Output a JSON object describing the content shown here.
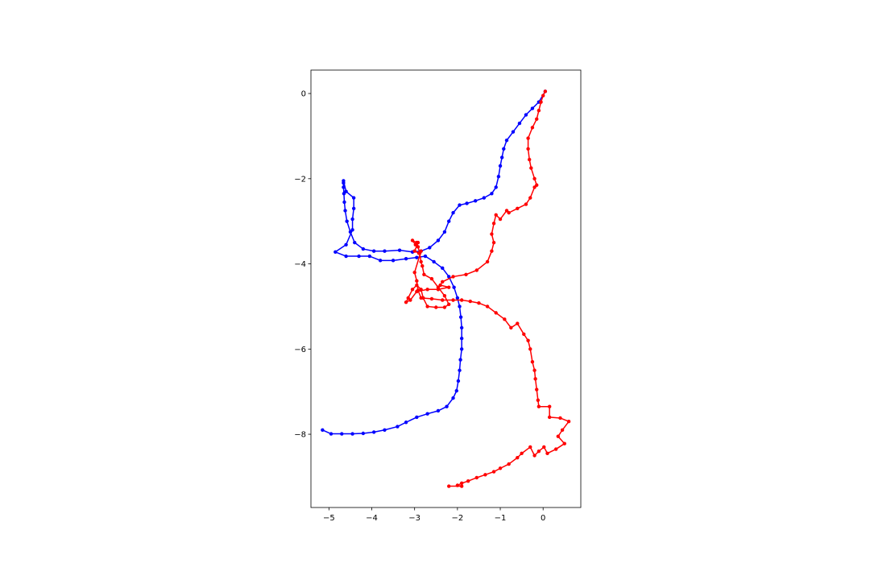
{
  "chart_data": {
    "type": "scatter",
    "title": "",
    "xlabel": "",
    "ylabel": "",
    "xlim": [
      -5.42,
      0.88
    ],
    "ylim": [
      -9.72,
      0.55
    ],
    "grid": false,
    "legend": "none",
    "x_ticks": [
      -5,
      -4,
      -3,
      -2,
      -1,
      0
    ],
    "x_tick_labels": [
      "−5",
      "−4",
      "−3",
      "−2",
      "−1",
      "0"
    ],
    "y_ticks": [
      0,
      -2,
      -4,
      -6,
      -8
    ],
    "y_tick_labels": [
      "0",
      "−2",
      "−4",
      "−6",
      "−8"
    ],
    "series": [
      {
        "color": "#0000ff",
        "marker": "circle",
        "points": [
          [
            0.05,
            0.05
          ],
          [
            -0.1,
            -0.2
          ],
          [
            -0.25,
            -0.35
          ],
          [
            -0.4,
            -0.5
          ],
          [
            -0.55,
            -0.7
          ],
          [
            -0.7,
            -0.9
          ],
          [
            -0.85,
            -1.1
          ],
          [
            -0.92,
            -1.3
          ],
          [
            -0.96,
            -1.5
          ],
          [
            -1.0,
            -1.7
          ],
          [
            -1.04,
            -1.95
          ],
          [
            -1.1,
            -2.2
          ],
          [
            -1.2,
            -2.35
          ],
          [
            -1.38,
            -2.45
          ],
          [
            -1.58,
            -2.52
          ],
          [
            -1.78,
            -2.58
          ],
          [
            -1.95,
            -2.62
          ],
          [
            -2.1,
            -2.8
          ],
          [
            -2.2,
            -3.0
          ],
          [
            -2.3,
            -3.25
          ],
          [
            -2.45,
            -3.45
          ],
          [
            -2.65,
            -3.62
          ],
          [
            -2.85,
            -3.7
          ],
          [
            -3.05,
            -3.72
          ],
          [
            -3.35,
            -3.68
          ],
          [
            -3.7,
            -3.7
          ],
          [
            -3.95,
            -3.7
          ],
          [
            -4.2,
            -3.65
          ],
          [
            -4.4,
            -3.5
          ],
          [
            -4.5,
            -3.25
          ],
          [
            -4.58,
            -3.0
          ],
          [
            -4.62,
            -2.75
          ],
          [
            -4.64,
            -2.55
          ],
          [
            -4.65,
            -2.35
          ],
          [
            -4.66,
            -2.2
          ],
          [
            -4.66,
            -2.1
          ],
          [
            -4.66,
            -2.05
          ],
          [
            -4.6,
            -2.3
          ],
          [
            -4.42,
            -2.45
          ],
          [
            -4.42,
            -2.7
          ],
          [
            -4.45,
            -2.95
          ],
          [
            -4.45,
            -3.2
          ],
          [
            -4.6,
            -3.55
          ],
          [
            -4.85,
            -3.72
          ],
          [
            -4.6,
            -3.82
          ],
          [
            -4.3,
            -3.82
          ],
          [
            -4.05,
            -3.82
          ],
          [
            -3.8,
            -3.92
          ],
          [
            -3.5,
            -3.92
          ],
          [
            -3.2,
            -3.88
          ],
          [
            -2.95,
            -3.85
          ],
          [
            -2.75,
            -3.82
          ],
          [
            -2.55,
            -3.95
          ],
          [
            -2.35,
            -4.1
          ],
          [
            -2.2,
            -4.3
          ],
          [
            -2.08,
            -4.55
          ],
          [
            -2.0,
            -4.8
          ],
          [
            -1.95,
            -5.0
          ],
          [
            -1.92,
            -5.25
          ],
          [
            -1.9,
            -5.5
          ],
          [
            -1.9,
            -5.75
          ],
          [
            -1.9,
            -6.0
          ],
          [
            -1.93,
            -6.25
          ],
          [
            -1.95,
            -6.5
          ],
          [
            -1.98,
            -6.75
          ],
          [
            -2.02,
            -6.98
          ],
          [
            -2.1,
            -7.15
          ],
          [
            -2.25,
            -7.35
          ],
          [
            -2.45,
            -7.45
          ],
          [
            -2.7,
            -7.52
          ],
          [
            -2.95,
            -7.6
          ],
          [
            -3.2,
            -7.72
          ],
          [
            -3.4,
            -7.82
          ],
          [
            -3.7,
            -7.9
          ],
          [
            -3.95,
            -7.95
          ],
          [
            -4.2,
            -7.98
          ],
          [
            -4.45,
            -7.99
          ],
          [
            -4.7,
            -7.99
          ],
          [
            -4.95,
            -7.99
          ],
          [
            -5.15,
            -7.9
          ]
        ]
      },
      {
        "color": "#ff0000",
        "marker": "circle",
        "points": [
          [
            0.05,
            0.05
          ],
          [
            0.0,
            -0.05
          ],
          [
            -0.05,
            -0.2
          ],
          [
            -0.1,
            -0.4
          ],
          [
            -0.15,
            -0.6
          ],
          [
            -0.25,
            -0.8
          ],
          [
            -0.35,
            -1.05
          ],
          [
            -0.35,
            -1.3
          ],
          [
            -0.32,
            -1.55
          ],
          [
            -0.28,
            -1.75
          ],
          [
            -0.2,
            -2.0
          ],
          [
            -0.15,
            -2.15
          ],
          [
            -0.2,
            -2.2
          ],
          [
            -0.3,
            -2.45
          ],
          [
            -0.4,
            -2.6
          ],
          [
            -0.6,
            -2.7
          ],
          [
            -0.8,
            -2.8
          ],
          [
            -0.85,
            -2.75
          ],
          [
            -1.0,
            -2.95
          ],
          [
            -1.1,
            -2.85
          ],
          [
            -1.15,
            -3.05
          ],
          [
            -1.2,
            -3.3
          ],
          [
            -1.15,
            -3.5
          ],
          [
            -1.2,
            -3.7
          ],
          [
            -1.3,
            -3.95
          ],
          [
            -1.55,
            -4.15
          ],
          [
            -1.8,
            -4.25
          ],
          [
            -2.1,
            -4.3
          ],
          [
            -2.35,
            -4.42
          ],
          [
            -2.4,
            -4.5
          ],
          [
            -2.2,
            -4.55
          ],
          [
            -2.45,
            -4.6
          ],
          [
            -2.7,
            -4.6
          ],
          [
            -2.95,
            -4.65
          ],
          [
            -3.1,
            -4.85
          ],
          [
            -3.2,
            -4.9
          ],
          [
            -3.15,
            -4.8
          ],
          [
            -3.05,
            -4.6
          ],
          [
            -2.95,
            -4.5
          ],
          [
            -2.85,
            -4.6
          ],
          [
            -2.8,
            -4.8
          ],
          [
            -2.7,
            -5.0
          ],
          [
            -2.5,
            -5.02
          ],
          [
            -2.3,
            -5.02
          ],
          [
            -2.2,
            -4.95
          ],
          [
            -2.3,
            -4.75
          ],
          [
            -2.45,
            -4.55
          ],
          [
            -2.6,
            -4.35
          ],
          [
            -2.78,
            -4.25
          ],
          [
            -2.82,
            -4.05
          ],
          [
            -2.85,
            -3.95
          ],
          [
            -2.88,
            -3.75
          ],
          [
            -2.92,
            -3.6
          ],
          [
            -2.95,
            -3.5
          ],
          [
            -3.05,
            -3.45
          ],
          [
            -2.98,
            -3.55
          ],
          [
            -2.92,
            -3.5
          ],
          [
            -3.0,
            -3.7
          ],
          [
            -2.9,
            -3.75
          ],
          [
            -2.85,
            -3.7
          ],
          [
            -3.0,
            -4.2
          ],
          [
            -2.95,
            -4.4
          ],
          [
            -2.92,
            -4.62
          ],
          [
            -2.85,
            -4.8
          ],
          [
            -2.6,
            -4.82
          ],
          [
            -2.35,
            -4.85
          ],
          [
            -2.1,
            -4.85
          ],
          [
            -1.9,
            -4.85
          ],
          [
            -1.7,
            -4.88
          ],
          [
            -1.5,
            -4.92
          ],
          [
            -1.3,
            -5.0
          ],
          [
            -1.1,
            -5.15
          ],
          [
            -0.9,
            -5.3
          ],
          [
            -0.75,
            -5.5
          ],
          [
            -0.6,
            -5.4
          ],
          [
            -0.45,
            -5.65
          ],
          [
            -0.35,
            -5.8
          ],
          [
            -0.3,
            -6.0
          ],
          [
            -0.25,
            -6.3
          ],
          [
            -0.2,
            -6.5
          ],
          [
            -0.18,
            -6.7
          ],
          [
            -0.15,
            -6.95
          ],
          [
            -0.12,
            -7.2
          ],
          [
            -0.1,
            -7.35
          ],
          [
            0.15,
            -7.35
          ],
          [
            0.15,
            -7.6
          ],
          [
            0.4,
            -7.62
          ],
          [
            0.6,
            -7.7
          ],
          [
            0.45,
            -7.9
          ],
          [
            0.35,
            -8.05
          ],
          [
            0.5,
            -8.22
          ],
          [
            0.3,
            -8.35
          ],
          [
            0.1,
            -8.45
          ],
          [
            0.02,
            -8.3
          ],
          [
            -0.1,
            -8.4
          ],
          [
            -0.2,
            -8.5
          ],
          [
            -0.3,
            -8.3
          ],
          [
            -0.5,
            -8.45
          ],
          [
            -0.6,
            -8.55
          ],
          [
            -0.8,
            -8.7
          ],
          [
            -1.0,
            -8.8
          ],
          [
            -1.15,
            -8.88
          ],
          [
            -1.35,
            -8.95
          ],
          [
            -1.55,
            -9.02
          ],
          [
            -1.75,
            -9.1
          ],
          [
            -1.9,
            -9.15
          ],
          [
            -2.0,
            -9.2
          ],
          [
            -1.9,
            -9.22
          ],
          [
            -2.2,
            -9.22
          ]
        ]
      }
    ]
  }
}
